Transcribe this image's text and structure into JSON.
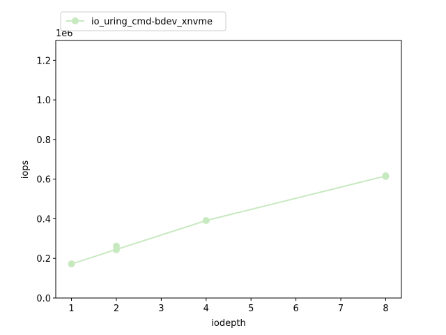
{
  "chart_data": {
    "type": "line",
    "xlabel": "iodepth",
    "ylabel": "iops",
    "y_offset_label": "1e6",
    "xlim": [
      0.65,
      8.35
    ],
    "ylim": [
      0,
      1300000
    ],
    "xticks": [
      1,
      2,
      3,
      4,
      5,
      6,
      7,
      8
    ],
    "yticks": [
      0,
      200000,
      400000,
      600000,
      800000,
      1000000,
      1200000
    ],
    "ytick_labels": [
      "0.0",
      "0.2",
      "0.4",
      "0.6",
      "0.8",
      "1.0",
      "1.2"
    ],
    "legend_position": "top-left, above plot",
    "grid": false,
    "series": [
      {
        "name": "io_uring_cmd-bdev_xnvme",
        "color": "#c7e9c0",
        "marker": "circle",
        "points": [
          {
            "x": 1,
            "y": 172000
          },
          {
            "x": 2,
            "y": 243000
          },
          {
            "x": 2,
            "y": 262000
          },
          {
            "x": 4,
            "y": 391000
          },
          {
            "x": 8,
            "y": 617000
          },
          {
            "x": 8,
            "y": 614000
          }
        ],
        "line": [
          {
            "x": 1,
            "y": 172000
          },
          {
            "x": 2,
            "y": 245000
          },
          {
            "x": 4,
            "y": 391000
          },
          {
            "x": 8,
            "y": 616000
          }
        ]
      }
    ]
  }
}
